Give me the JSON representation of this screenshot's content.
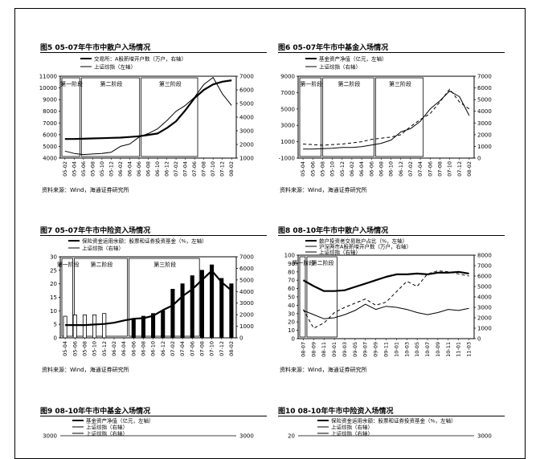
{
  "chart_data": [
    {
      "id": "c5",
      "type": "line",
      "title": "图5  05-07年牛市中散户入场情况",
      "source": "资料来源：Wind，海通证券研究所",
      "legend": [
        "交易所：A股新增开户数（万户，右轴）",
        "上证综指（左轴）"
      ],
      "phases": [
        "第一阶段",
        "第二阶段",
        "第三阶段"
      ],
      "x": [
        "05-02",
        "05-04",
        "05-06",
        "05-08",
        "05-10",
        "05-12",
        "06-02",
        "06-04",
        "06-06",
        "06-08",
        "06-10",
        "06-12",
        "07-02",
        "07-04",
        "07-06",
        "07-08",
        "07-10",
        "07-12",
        "08-02"
      ],
      "ylim_left": [
        4000,
        11000
      ],
      "yticks_left": [
        4000,
        5000,
        6000,
        7000,
        8000,
        9000,
        10000,
        11000
      ],
      "ylim_right": [
        1000,
        7000
      ],
      "yticks_right": [
        1000,
        2000,
        3000,
        4000,
        5000,
        6000,
        7000
      ],
      "series": [
        {
          "name": "交易所：A股新增开户数（万户，右轴）",
          "axis": "right",
          "style": "thick",
          "values": [
            2400,
            2400,
            2420,
            2440,
            2460,
            2480,
            2500,
            2550,
            2600,
            2700,
            2800,
            3200,
            3700,
            4500,
            5400,
            6000,
            6400,
            6600,
            6700
          ]
        },
        {
          "name": "上证综指（左轴）",
          "axis": "left",
          "style": "thin",
          "values": [
            4600,
            4400,
            4300,
            4350,
            4400,
            4500,
            5000,
            5200,
            5800,
            6100,
            6500,
            7200,
            8000,
            8500,
            9200,
            10300,
            10900,
            9500,
            8500
          ]
        }
      ]
    },
    {
      "id": "c6",
      "type": "line",
      "title": "图6  05-07年牛市中基金入场情况",
      "source": "资料来源：Wind，海通证券研究所",
      "legend": [
        "基金资产净值（亿元，左轴）",
        "上证综指（右轴）"
      ],
      "phases": [
        "第一阶段",
        "第二阶段",
        "第三阶段"
      ],
      "x": [
        "05-04",
        "05-06",
        "05-08",
        "05-10",
        "05-12",
        "06-02",
        "06-04",
        "06-06",
        "06-08",
        "06-10",
        "06-12",
        "07-02",
        "07-04",
        "07-06",
        "07-08",
        "07-10",
        "07-12",
        "08-02"
      ],
      "ylim_left": [
        -1000,
        9000
      ],
      "yticks_left": [
        -1000,
        1000,
        3000,
        5000,
        7000,
        9000
      ],
      "ylim_right": [
        0,
        7000
      ],
      "yticks_right": [
        0,
        1000,
        2000,
        3000,
        4000,
        5000,
        6000,
        7000
      ],
      "series": [
        {
          "name": "基金资产净值（亿元，左轴）",
          "axis": "left",
          "style": "thin",
          "values": [
            100,
            100,
            150,
            200,
            300,
            300,
            400,
            600,
            800,
            1200,
            2200,
            2600,
            3500,
            5000,
            6000,
            7200,
            6500,
            4200
          ]
        },
        {
          "name": "上证综指（右轴）",
          "axis": "right",
          "style": "dashed",
          "values": [
            1200,
            1150,
            1100,
            1150,
            1200,
            1300,
            1400,
            1600,
            1700,
            1800,
            2000,
            2700,
            3300,
            3800,
            4800,
            5900,
            4800,
            4200
          ]
        }
      ]
    },
    {
      "id": "c7",
      "type": "bar",
      "title": "图7  05-07年牛市中险资入场情况",
      "source": "资料来源：Wind，海通证券研究所",
      "legend": [
        "保险资金运用余额：股票和证券投资基金（%，左轴）",
        "上证综指（右轴）"
      ],
      "phases": [
        "第一阶段",
        "第二阶段",
        "第三阶段"
      ],
      "x": [
        "05-04",
        "05-06",
        "05-08",
        "05-10",
        "05-12",
        "06-02",
        "06-04",
        "06-06",
        "06-08",
        "06-10",
        "06-12",
        "07-02",
        "07-04",
        "07-06",
        "07-08",
        "07-10",
        "07-12",
        "08-02"
      ],
      "ylim_left": [
        0,
        30
      ],
      "yticks_left": [
        0,
        5,
        10,
        15,
        20,
        25,
        30
      ],
      "ylim_right": [
        0,
        7000
      ],
      "yticks_right": [
        0,
        1000,
        2000,
        3000,
        4000,
        5000,
        6000,
        7000
      ],
      "bars": [
        8,
        8.5,
        8.5,
        8.5,
        9,
        0,
        0,
        7,
        8,
        9,
        10,
        18,
        20,
        23,
        25,
        27,
        22,
        20
      ],
      "series": [
        {
          "name": "上证综指（右轴）",
          "axis": "right",
          "style": "thick",
          "values": [
            1100,
            1100,
            1100,
            1150,
            1200,
            1300,
            1500,
            1650,
            1700,
            1900,
            2400,
            2800,
            3600,
            4200,
            5000,
            5800,
            4800,
            4100
          ]
        }
      ]
    },
    {
      "id": "c8",
      "type": "line",
      "title": "图8  08-10年牛市中散户入场情况",
      "source": "资料来源：Wind，海通证券研究所",
      "legend": [
        "散户投资者交易账户占比（%，左轴）",
        "沪深两市A股新增开户数（万户，右轴）",
        "上证综指（右轴）"
      ],
      "phases": [
        "第一阶段",
        "第二阶段"
      ],
      "x": [
        "08-07",
        "08-09",
        "08-11",
        "09-01",
        "09-03",
        "09-05",
        "09-07",
        "09-09",
        "09-11",
        "10-01",
        "10-03",
        "10-05",
        "10-07",
        "10-09",
        "10-11",
        "11-01",
        "11-03"
      ],
      "ylim_left": [
        0,
        100
      ],
      "yticks_left": [
        0,
        10,
        20,
        30,
        40,
        50,
        60,
        70,
        80,
        90,
        100
      ],
      "ylim_right": [
        0,
        8000
      ],
      "yticks_right": [
        0,
        1000,
        2000,
        3000,
        4000,
        5000,
        6000,
        7000,
        8000
      ],
      "series": [
        {
          "name": "散户投资者交易账户占比（%，左轴）",
          "axis": "left",
          "style": "thick",
          "values": [
            70,
            63,
            57,
            57,
            58,
            62,
            66,
            70,
            74,
            77,
            77,
            78,
            77,
            79,
            79,
            80,
            78
          ]
        },
        {
          "name": "沪深两市A股新增开户数（万户，右轴）",
          "axis": "right",
          "style": "dashed",
          "values": [
            2800,
            1000,
            1500,
            2500,
            3000,
            3400,
            3800,
            3200,
            3500,
            4500,
            5500,
            5000,
            6200,
            6500,
            6400,
            6200,
            6000
          ]
        },
        {
          "name": "上证综指（右轴）",
          "axis": "right",
          "style": "thin",
          "values": [
            2700,
            2300,
            1900,
            2000,
            2300,
            2700,
            3300,
            2800,
            3100,
            3000,
            2800,
            2500,
            2300,
            2500,
            2800,
            2700,
            2900
          ]
        }
      ]
    },
    {
      "id": "c9",
      "type": "line",
      "title": "图9  08-10年牛市中基金入场情况",
      "legend": [
        "基金资产净值（亿元，左轴）",
        "上证综指（右轴）",
        "上证综指（右轴）"
      ],
      "yticks_left": [
        3000
      ],
      "yticks_right": [
        3000
      ]
    },
    {
      "id": "c10",
      "type": "bar",
      "title": "图10 08-10年牛市中险资入场情况",
      "legend": [
        "保险资金运用余额：股票和证券投资基金（%，左轴）",
        "上证综指（右轴）",
        "上证综指（右轴）"
      ],
      "yticks_left": [
        20
      ],
      "yticks_right": [
        3000
      ]
    }
  ]
}
